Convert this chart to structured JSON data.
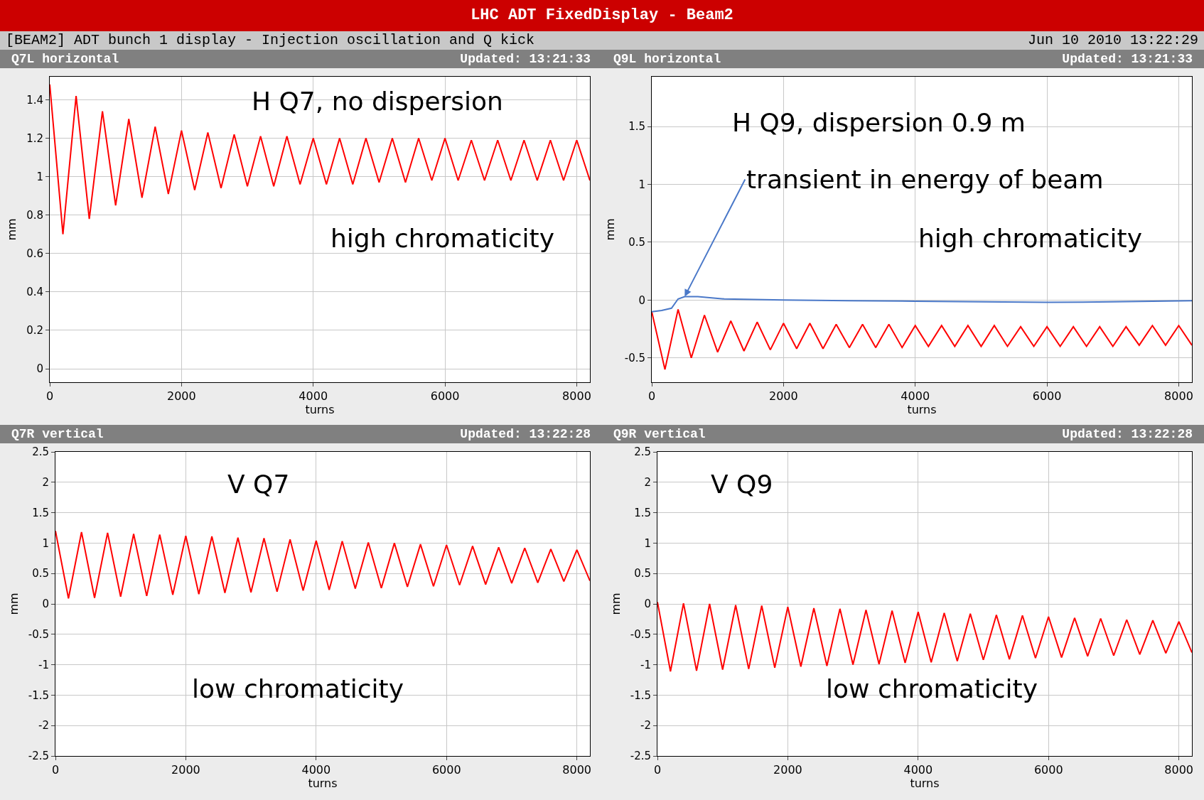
{
  "chart_data": [
    {
      "type": "line",
      "title": "Q7L horizontal",
      "subtitle": "[BEAM2] ADT bunch 1 display - Injection oscillation and Q kick",
      "xlabel": "turns",
      "ylabel": "mm",
      "xlim": [
        0,
        8200
      ],
      "ylim": [
        -0.07,
        1.52
      ],
      "xticks": [
        0,
        2000,
        4000,
        6000,
        8000
      ],
      "yticks": [
        0,
        0.2,
        0.4,
        0.6,
        0.8,
        1,
        1.2,
        1.4
      ],
      "grid": true,
      "x": [
        0,
        200,
        400,
        600,
        800,
        1000,
        1200,
        1400,
        1600,
        1800,
        2000,
        2200,
        2400,
        2600,
        2800,
        3000,
        3200,
        3400,
        3600,
        3800,
        4000,
        4200,
        4400,
        4600,
        4800,
        5000,
        5200,
        5400,
        5600,
        5800,
        6000,
        6200,
        6400,
        6600,
        6800,
        7000,
        7200,
        7400,
        7600,
        7800,
        8000,
        8200
      ],
      "series": [
        {
          "color": "#ff0000",
          "values": [
            1.48,
            0.7,
            1.42,
            0.78,
            1.34,
            0.85,
            1.3,
            0.89,
            1.26,
            0.91,
            1.24,
            0.93,
            1.23,
            0.94,
            1.22,
            0.95,
            1.21,
            0.95,
            1.21,
            0.96,
            1.2,
            0.96,
            1.2,
            0.96,
            1.2,
            0.97,
            1.2,
            0.97,
            1.2,
            0.98,
            1.2,
            0.98,
            1.19,
            0.98,
            1.19,
            0.98,
            1.19,
            0.98,
            1.19,
            0.98,
            1.19,
            0.98
          ]
        }
      ],
      "annotations": [
        "LHC ADT FixedDisplay - Beam2",
        "Jun 10 2010  13:22:29",
        "Updated: 13:21:33",
        "H Q7, no dispersion",
        "high chromaticity"
      ]
    },
    {
      "type": "line",
      "title": "Q9L horizontal",
      "xlabel": "turns",
      "ylabel": "mm",
      "xlim": [
        0,
        8200
      ],
      "ylim": [
        -0.71,
        1.93
      ],
      "xticks": [
        0,
        2000,
        4000,
        6000,
        8000
      ],
      "yticks": [
        -0.5,
        0,
        0.5,
        1,
        1.5
      ],
      "grid": true,
      "x": [
        0,
        200,
        400,
        600,
        800,
        1000,
        1200,
        1400,
        1600,
        1800,
        2000,
        2200,
        2400,
        2600,
        2800,
        3000,
        3200,
        3400,
        3600,
        3800,
        4000,
        4200,
        4400,
        4600,
        4800,
        5000,
        5200,
        5400,
        5600,
        5800,
        6000,
        6200,
        6400,
        6600,
        6800,
        7000,
        7200,
        7400,
        7600,
        7800,
        8000,
        8200
      ],
      "series": [
        {
          "color": "#ff0000",
          "values": [
            -0.1,
            -0.6,
            -0.08,
            -0.5,
            -0.13,
            -0.45,
            -0.18,
            -0.44,
            -0.19,
            -0.43,
            -0.2,
            -0.42,
            -0.2,
            -0.42,
            -0.21,
            -0.41,
            -0.21,
            -0.41,
            -0.21,
            -0.41,
            -0.22,
            -0.4,
            -0.22,
            -0.4,
            -0.22,
            -0.4,
            -0.22,
            -0.4,
            -0.23,
            -0.4,
            -0.23,
            -0.4,
            -0.23,
            -0.4,
            -0.23,
            -0.4,
            -0.23,
            -0.39,
            -0.22,
            -0.39,
            -0.22,
            -0.39
          ]
        },
        {
          "color": "#4a78c8",
          "x": [
            0,
            150,
            300,
            400,
            500,
            700,
            1100,
            2000,
            3000,
            4000,
            5000,
            6000,
            7000,
            8200
          ],
          "values": [
            -0.1,
            -0.09,
            -0.07,
            0.01,
            0.03,
            0.03,
            0.01,
            0.0,
            -0.005,
            -0.01,
            -0.015,
            -0.02,
            -0.015,
            -0.005
          ]
        }
      ],
      "annotations": [
        "Updated: 13:21:33",
        "H Q9, dispersion 0.9 m",
        {
          "text": "transient in energy of beam",
          "x": 500,
          "y": 0.03
        },
        "high chromaticity"
      ]
    },
    {
      "type": "line",
      "title": "Q7R vertical",
      "xlabel": "turns",
      "ylabel": "mm",
      "xlim": [
        0,
        8200
      ],
      "ylim": [
        -2.5,
        2.5
      ],
      "xticks": [
        0,
        2000,
        4000,
        6000,
        8000
      ],
      "yticks": [
        -2.5,
        -2,
        -1.5,
        -1,
        -0.5,
        0,
        0.5,
        1,
        1.5,
        2,
        2.5
      ],
      "grid": true,
      "x": [
        0,
        200,
        400,
        600,
        800,
        1000,
        1200,
        1400,
        1600,
        1800,
        2000,
        2200,
        2400,
        2600,
        2800,
        3000,
        3200,
        3400,
        3600,
        3800,
        4000,
        4200,
        4400,
        4600,
        4800,
        5000,
        5200,
        5400,
        5600,
        5800,
        6000,
        6200,
        6400,
        6600,
        6800,
        7000,
        7200,
        7400,
        7600,
        7800,
        8000,
        8200
      ],
      "series": [
        {
          "color": "#ff0000",
          "values": [
            1.2,
            0.09,
            1.18,
            0.1,
            1.17,
            0.12,
            1.15,
            0.13,
            1.14,
            0.15,
            1.12,
            0.16,
            1.11,
            0.18,
            1.09,
            0.19,
            1.08,
            0.2,
            1.06,
            0.22,
            1.04,
            0.23,
            1.03,
            0.25,
            1.01,
            0.26,
            1.0,
            0.28,
            0.98,
            0.29,
            0.97,
            0.31,
            0.95,
            0.32,
            0.93,
            0.34,
            0.92,
            0.35,
            0.9,
            0.37,
            0.89,
            0.38
          ]
        }
      ],
      "annotations": [
        "Updated: 13:22:28",
        "V Q7",
        "low chromaticity"
      ]
    },
    {
      "type": "line",
      "title": "Q9R vertical",
      "xlabel": "turns",
      "ylabel": "mm",
      "xlim": [
        0,
        8200
      ],
      "ylim": [
        -2.5,
        2.5
      ],
      "xticks": [
        0,
        2000,
        4000,
        6000,
        8000
      ],
      "yticks": [
        -2.5,
        -2,
        -1.5,
        -1,
        -0.5,
        0,
        0.5,
        1,
        1.5,
        2,
        2.5
      ],
      "grid": true,
      "x": [
        0,
        200,
        400,
        600,
        800,
        1000,
        1200,
        1400,
        1600,
        1800,
        2000,
        2200,
        2400,
        2600,
        2800,
        3000,
        3200,
        3400,
        3600,
        3800,
        4000,
        4200,
        4400,
        4600,
        4800,
        5000,
        5200,
        5400,
        5600,
        5800,
        6000,
        6200,
        6400,
        6600,
        6800,
        7000,
        7200,
        7400,
        7600,
        7800,
        8000,
        8200
      ],
      "series": [
        {
          "color": "#ff0000",
          "values": [
            0.03,
            -1.11,
            0.01,
            -1.1,
            0.0,
            -1.08,
            -0.02,
            -1.07,
            -0.03,
            -1.05,
            -0.05,
            -1.03,
            -0.07,
            -1.02,
            -0.08,
            -1.0,
            -0.1,
            -0.99,
            -0.11,
            -0.97,
            -0.13,
            -0.96,
            -0.15,
            -0.94,
            -0.16,
            -0.92,
            -0.18,
            -0.91,
            -0.19,
            -0.89,
            -0.21,
            -0.88,
            -0.23,
            -0.86,
            -0.24,
            -0.85,
            -0.26,
            -0.83,
            -0.27,
            -0.81,
            -0.29,
            -0.8
          ]
        }
      ],
      "annotations": [
        "Updated: 13:22:28",
        "V Q9",
        "low chromaticity"
      ]
    }
  ]
}
